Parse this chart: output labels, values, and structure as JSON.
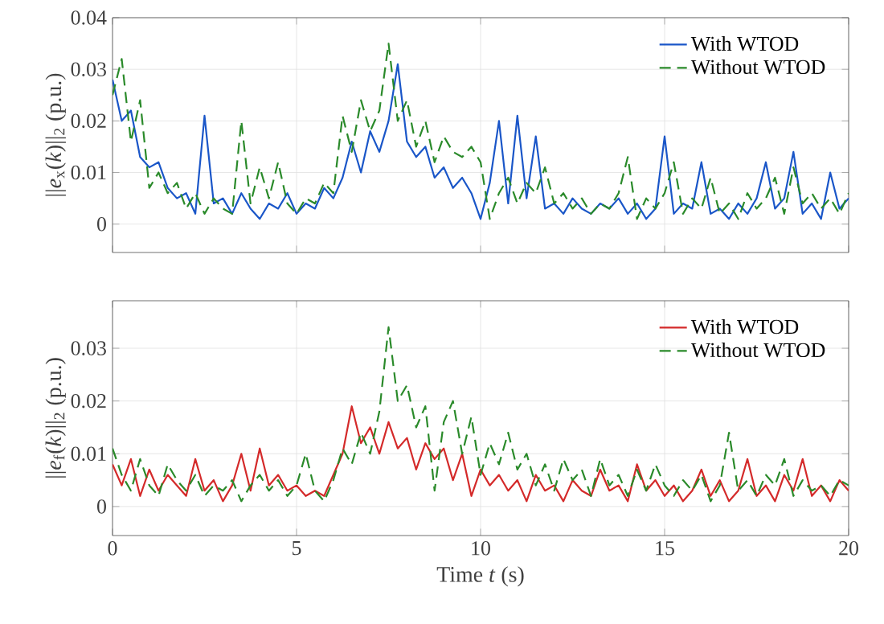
{
  "chart_data": [
    {
      "type": "line",
      "ylabel": "||*e*$_{x}$(*k*)||$_{2}$ (p.u.)",
      "xlim": [
        0,
        20
      ],
      "xticks": [
        0,
        5,
        10,
        15,
        20
      ],
      "ylim": [
        -0.0055,
        0.04
      ],
      "yticks": [
        0,
        0.01,
        0.02,
        0.03,
        0.04
      ],
      "tick_labels": "y",
      "grid": true,
      "legend": "top right",
      "x": [
        0,
        0.25,
        0.5,
        0.75,
        1,
        1.25,
        1.5,
        1.75,
        2,
        2.25,
        2.5,
        2.75,
        3,
        3.25,
        3.5,
        3.75,
        4,
        4.25,
        4.5,
        4.75,
        5,
        5.25,
        5.5,
        5.75,
        6,
        6.25,
        6.5,
        6.75,
        7,
        7.25,
        7.5,
        7.75,
        8,
        8.25,
        8.5,
        8.75,
        9,
        9.25,
        9.5,
        9.75,
        10,
        10.25,
        10.5,
        10.75,
        11,
        11.25,
        11.5,
        11.75,
        12,
        12.25,
        12.5,
        12.75,
        13,
        13.25,
        13.5,
        13.75,
        14,
        14.25,
        14.5,
        14.75,
        15,
        15.25,
        15.5,
        15.75,
        16,
        16.25,
        16.5,
        16.75,
        17,
        17.25,
        17.5,
        17.75,
        18,
        18.25,
        18.5,
        18.75,
        19,
        19.25,
        19.5,
        19.75,
        20
      ],
      "series": [
        {
          "name": "With WTOD",
          "color": "#1a56c8",
          "line_style": "solid",
          "values": [
            0.028,
            0.02,
            0.022,
            0.013,
            0.011,
            0.012,
            0.007,
            0.005,
            0.006,
            0.002,
            0.021,
            0.004,
            0.005,
            0.002,
            0.006,
            0.003,
            0.001,
            0.004,
            0.003,
            0.006,
            0.002,
            0.004,
            0.003,
            0.007,
            0.005,
            0.009,
            0.016,
            0.01,
            0.018,
            0.014,
            0.02,
            0.031,
            0.016,
            0.013,
            0.015,
            0.009,
            0.011,
            0.007,
            0.009,
            0.006,
            0.001,
            0.008,
            0.02,
            0.004,
            0.021,
            0.005,
            0.017,
            0.003,
            0.004,
            0.002,
            0.005,
            0.003,
            0.002,
            0.004,
            0.003,
            0.005,
            0.002,
            0.004,
            0.001,
            0.003,
            0.017,
            0.002,
            0.004,
            0.003,
            0.012,
            0.002,
            0.003,
            0.001,
            0.004,
            0.002,
            0.005,
            0.012,
            0.003,
            0.005,
            0.014,
            0.002,
            0.004,
            0.001,
            0.01,
            0.003,
            0.005
          ]
        },
        {
          "name": "Without WTOD",
          "color": "#2a8a2a",
          "line_style": "dashed",
          "values": [
            0.025,
            0.032,
            0.016,
            0.024,
            0.007,
            0.01,
            0.006,
            0.008,
            0.003,
            0.006,
            0.002,
            0.005,
            0.003,
            0.002,
            0.02,
            0.004,
            0.011,
            0.005,
            0.012,
            0.004,
            0.002,
            0.005,
            0.004,
            0.008,
            0.006,
            0.021,
            0.014,
            0.024,
            0.018,
            0.022,
            0.035,
            0.02,
            0.024,
            0.015,
            0.02,
            0.012,
            0.017,
            0.014,
            0.013,
            0.015,
            0.012,
            0.001,
            0.006,
            0.009,
            0.004,
            0.008,
            0.006,
            0.011,
            0.004,
            0.006,
            0.003,
            0.005,
            0.002,
            0.004,
            0.003,
            0.006,
            0.013,
            0.001,
            0.005,
            0.003,
            0.006,
            0.012,
            0.002,
            0.005,
            0.003,
            0.009,
            0.002,
            0.004,
            0.001,
            0.006,
            0.003,
            0.005,
            0.009,
            0.002,
            0.011,
            0.004,
            0.006,
            0.003,
            0.005,
            0.002,
            0.006
          ]
        }
      ]
    },
    {
      "type": "line",
      "xlabel": "Time *t* (s)",
      "ylabel": "||*e*$_{f}$(*k*)||$_{2}$ (p.u.)",
      "xlim": [
        0,
        20
      ],
      "xticks": [
        0,
        5,
        10,
        15,
        20
      ],
      "ylim": [
        -0.0055,
        0.039
      ],
      "yticks": [
        0,
        0.01,
        0.02,
        0.03
      ],
      "grid": true,
      "legend": "top right",
      "x": [
        0,
        0.25,
        0.5,
        0.75,
        1,
        1.25,
        1.5,
        1.75,
        2,
        2.25,
        2.5,
        2.75,
        3,
        3.25,
        3.5,
        3.75,
        4,
        4.25,
        4.5,
        4.75,
        5,
        5.25,
        5.5,
        5.75,
        6,
        6.25,
        6.5,
        6.75,
        7,
        7.25,
        7.5,
        7.75,
        8,
        8.25,
        8.5,
        8.75,
        9,
        9.25,
        9.5,
        9.75,
        10,
        10.25,
        10.5,
        10.75,
        11,
        11.25,
        11.5,
        11.75,
        12,
        12.25,
        12.5,
        12.75,
        13,
        13.25,
        13.5,
        13.75,
        14,
        14.25,
        14.5,
        14.75,
        15,
        15.25,
        15.5,
        15.75,
        16,
        16.25,
        16.5,
        16.75,
        17,
        17.25,
        17.5,
        17.75,
        18,
        18.25,
        18.5,
        18.75,
        19,
        19.25,
        19.5,
        19.75,
        20
      ],
      "series": [
        {
          "name": "With WTOD",
          "color": "#d42a2a",
          "line_style": "solid",
          "values": [
            0.008,
            0.004,
            0.009,
            0.002,
            0.007,
            0.003,
            0.006,
            0.004,
            0.002,
            0.009,
            0.003,
            0.005,
            0.001,
            0.004,
            0.01,
            0.003,
            0.011,
            0.004,
            0.006,
            0.003,
            0.004,
            0.002,
            0.003,
            0.002,
            0.006,
            0.01,
            0.019,
            0.012,
            0.015,
            0.01,
            0.016,
            0.011,
            0.013,
            0.007,
            0.012,
            0.009,
            0.011,
            0.005,
            0.01,
            0.002,
            0.007,
            0.004,
            0.006,
            0.003,
            0.005,
            0.001,
            0.006,
            0.003,
            0.004,
            0.001,
            0.005,
            0.003,
            0.002,
            0.007,
            0.003,
            0.004,
            0.001,
            0.008,
            0.003,
            0.005,
            0.002,
            0.004,
            0.001,
            0.003,
            0.007,
            0.002,
            0.005,
            0.001,
            0.003,
            0.009,
            0.002,
            0.004,
            0.001,
            0.006,
            0.003,
            0.009,
            0.002,
            0.004,
            0.001,
            0.005,
            0.003
          ]
        },
        {
          "name": "Without WTOD",
          "color": "#2a8a2a",
          "line_style": "dashed",
          "values": [
            0.011,
            0.006,
            0.003,
            0.009,
            0.004,
            0.002,
            0.008,
            0.005,
            0.003,
            0.006,
            0.002,
            0.004,
            0.003,
            0.005,
            0.001,
            0.004,
            0.006,
            0.003,
            0.005,
            0.002,
            0.004,
            0.01,
            0.003,
            0.001,
            0.005,
            0.011,
            0.008,
            0.014,
            0.01,
            0.018,
            0.034,
            0.02,
            0.023,
            0.015,
            0.019,
            0.003,
            0.016,
            0.02,
            0.01,
            0.017,
            0.006,
            0.012,
            0.008,
            0.014,
            0.007,
            0.01,
            0.004,
            0.008,
            0.003,
            0.009,
            0.005,
            0.007,
            0.002,
            0.009,
            0.004,
            0.006,
            0.002,
            0.007,
            0.003,
            0.008,
            0.004,
            0.002,
            0.005,
            0.003,
            0.006,
            0.001,
            0.004,
            0.014,
            0.003,
            0.005,
            0.002,
            0.006,
            0.004,
            0.009,
            0.002,
            0.005,
            0.003,
            0.004,
            0.002,
            0.005,
            0.004
          ]
        }
      ]
    }
  ]
}
